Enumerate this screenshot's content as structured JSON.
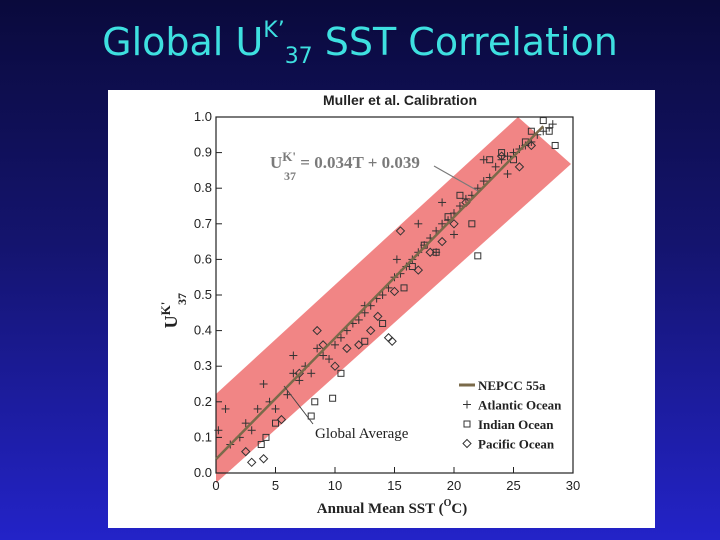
{
  "slide": {
    "title_pre": "Global U",
    "title_sup": "K’",
    "title_sub": "37",
    "title_post": " SST Correlation",
    "title_color": "#3ee0e0"
  },
  "chart_data": {
    "type": "scatter",
    "title": "Muller et al. Calibration",
    "xlabel": "Annual Mean SST (",
    "xlabel_sup": "O",
    "xlabel_post": "C)",
    "ylabel_main": "U",
    "ylabel_sup": "K'",
    "ylabel_sub": "37",
    "xlim": [
      0,
      30
    ],
    "ylim": [
      0.0,
      1.0
    ],
    "x_ticks": [
      "0",
      "5",
      "10",
      "15",
      "20",
      "25",
      "30"
    ],
    "y_ticks": [
      "0.0",
      "0.1",
      "0.2",
      "0.3",
      "0.4",
      "0.5",
      "0.6",
      "0.7",
      "0.8",
      "0.9",
      "1.0"
    ],
    "band_color": "#f07878",
    "line_color": "#7a6a4a",
    "regression": {
      "slope": 0.034,
      "intercept": 0.039,
      "eq_main": "U",
      "eq_sup": "K'",
      "eq_sub": "37",
      "eq_rest": " = 0.034T + 0.039",
      "label_color": "#7a7a7a"
    },
    "annotation": "Global Average",
    "legend": {
      "position": "bottom-right",
      "entries": [
        {
          "name": "NEPCC 55a",
          "marker": "line"
        },
        {
          "name": "Atlantic Ocean",
          "marker": "plus"
        },
        {
          "name": "Indian Ocean",
          "marker": "square"
        },
        {
          "name": "Pacific Ocean",
          "marker": "diamond"
        }
      ]
    },
    "series": [
      {
        "name": "Atlantic Ocean",
        "marker": "plus",
        "points": [
          [
            0.2,
            0.12
          ],
          [
            0.8,
            0.18
          ],
          [
            1.2,
            0.08
          ],
          [
            2.0,
            0.1
          ],
          [
            2.5,
            0.14
          ],
          [
            3.5,
            0.18
          ],
          [
            4.0,
            0.25
          ],
          [
            4.5,
            0.2
          ],
          [
            5.0,
            0.18
          ],
          [
            6.0,
            0.22
          ],
          [
            6.5,
            0.28
          ],
          [
            7.0,
            0.26
          ],
          [
            7.5,
            0.3
          ],
          [
            8.0,
            0.28
          ],
          [
            8.5,
            0.35
          ],
          [
            9.0,
            0.33
          ],
          [
            9.5,
            0.32
          ],
          [
            10.0,
            0.36
          ],
          [
            10.5,
            0.38
          ],
          [
            11.0,
            0.4
          ],
          [
            11.5,
            0.42
          ],
          [
            12.0,
            0.43
          ],
          [
            12.5,
            0.45
          ],
          [
            13.0,
            0.47
          ],
          [
            13.5,
            0.49
          ],
          [
            14.0,
            0.5
          ],
          [
            14.5,
            0.52
          ],
          [
            15.0,
            0.55
          ],
          [
            15.5,
            0.56
          ],
          [
            16.0,
            0.58
          ],
          [
            16.5,
            0.6
          ],
          [
            17.0,
            0.62
          ],
          [
            17.5,
            0.64
          ],
          [
            18.0,
            0.66
          ],
          [
            18.5,
            0.68
          ],
          [
            19.0,
            0.7
          ],
          [
            19.5,
            0.71
          ],
          [
            20.0,
            0.73
          ],
          [
            20.5,
            0.75
          ],
          [
            21.0,
            0.77
          ],
          [
            21.5,
            0.78
          ],
          [
            22.0,
            0.8
          ],
          [
            22.5,
            0.82
          ],
          [
            23.0,
            0.83
          ],
          [
            23.5,
            0.86
          ],
          [
            24.0,
            0.88
          ],
          [
            24.5,
            0.89
          ],
          [
            25.0,
            0.9
          ],
          [
            25.5,
            0.91
          ],
          [
            26.0,
            0.92
          ],
          [
            26.5,
            0.93
          ],
          [
            27.0,
            0.95
          ],
          [
            27.5,
            0.96
          ],
          [
            28.0,
            0.97
          ],
          [
            28.3,
            0.98
          ],
          [
            19.0,
            0.76
          ],
          [
            17.0,
            0.7
          ],
          [
            20.0,
            0.67
          ],
          [
            22.5,
            0.88
          ],
          [
            6.5,
            0.33
          ],
          [
            15.2,
            0.6
          ],
          [
            12.5,
            0.47
          ],
          [
            3.0,
            0.12
          ],
          [
            18.5,
            0.62
          ],
          [
            24.5,
            0.84
          ]
        ]
      },
      {
        "name": "Indian Ocean",
        "marker": "square",
        "points": [
          [
            3.8,
            0.08
          ],
          [
            4.2,
            0.1
          ],
          [
            5.0,
            0.14
          ],
          [
            8.0,
            0.16
          ],
          [
            8.3,
            0.2
          ],
          [
            9.8,
            0.21
          ],
          [
            10.5,
            0.28
          ],
          [
            12.5,
            0.37
          ],
          [
            14.0,
            0.42
          ],
          [
            15.8,
            0.52
          ],
          [
            16.5,
            0.58
          ],
          [
            17.5,
            0.64
          ],
          [
            18.5,
            0.62
          ],
          [
            19.5,
            0.72
          ],
          [
            20.5,
            0.78
          ],
          [
            21.5,
            0.7
          ],
          [
            22.0,
            0.61
          ],
          [
            23.0,
            0.88
          ],
          [
            24.0,
            0.9
          ],
          [
            25.0,
            0.88
          ],
          [
            26.0,
            0.93
          ],
          [
            26.5,
            0.96
          ],
          [
            27.5,
            0.99
          ],
          [
            28.0,
            0.96
          ],
          [
            28.5,
            0.92
          ]
        ]
      },
      {
        "name": "Pacific Ocean",
        "marker": "diamond",
        "points": [
          [
            2.5,
            0.06
          ],
          [
            3.0,
            0.03
          ],
          [
            4.0,
            0.04
          ],
          [
            5.5,
            0.15
          ],
          [
            7.0,
            0.28
          ],
          [
            8.5,
            0.4
          ],
          [
            9.0,
            0.36
          ],
          [
            10.0,
            0.3
          ],
          [
            11.0,
            0.35
          ],
          [
            12.0,
            0.36
          ],
          [
            13.0,
            0.4
          ],
          [
            14.5,
            0.38
          ],
          [
            15.0,
            0.51
          ],
          [
            15.5,
            0.68
          ],
          [
            17.0,
            0.57
          ],
          [
            18.0,
            0.62
          ],
          [
            19.0,
            0.65
          ],
          [
            20.0,
            0.7
          ],
          [
            21.0,
            0.76
          ],
          [
            24.0,
            0.89
          ],
          [
            25.5,
            0.86
          ],
          [
            26.5,
            0.92
          ],
          [
            14.8,
            0.37
          ],
          [
            13.6,
            0.44
          ]
        ]
      }
    ]
  }
}
